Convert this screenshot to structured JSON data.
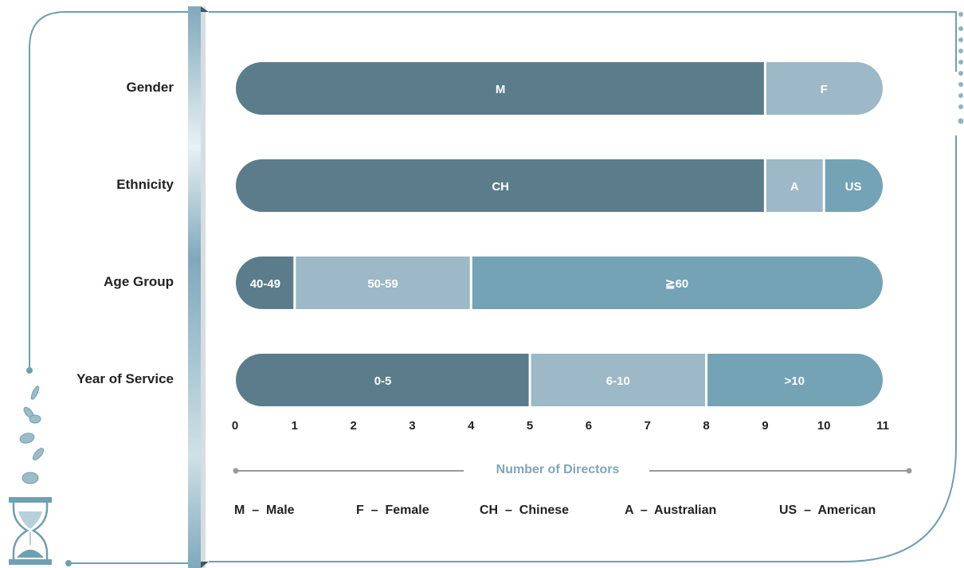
{
  "chart_data": {
    "type": "bar",
    "orientation": "horizontal",
    "stacked": true,
    "categories": [
      "Gender",
      "Ethnicity",
      "Age Group",
      "Year of Service"
    ],
    "rows": [
      {
        "category": "Gender",
        "segments": [
          {
            "label": "M",
            "value": 9,
            "color": "#5b7c8b"
          },
          {
            "label": "F",
            "value": 2,
            "color": "#9db8c7"
          }
        ]
      },
      {
        "category": "Ethnicity",
        "segments": [
          {
            "label": "CH",
            "value": 9,
            "color": "#5b7c8b"
          },
          {
            "label": "A",
            "value": 1,
            "color": "#9db8c7"
          },
          {
            "label": "US",
            "value": 1,
            "color": "#74a3b5"
          }
        ]
      },
      {
        "category": "Age Group",
        "segments": [
          {
            "label": "40-49",
            "value": 1,
            "color": "#5b7c8b"
          },
          {
            "label": "50-59",
            "value": 3,
            "color": "#9db8c7"
          },
          {
            "label": "≧60",
            "value": 7,
            "color": "#74a3b5"
          }
        ]
      },
      {
        "category": "Year of Service",
        "segments": [
          {
            "label": "0-5",
            "value": 5,
            "color": "#5b7c8b"
          },
          {
            "label": "6-10",
            "value": 3,
            "color": "#9db8c7"
          },
          {
            "label": ">10",
            "value": 3,
            "color": "#74a3b5"
          }
        ]
      }
    ],
    "xticks": [
      "0",
      "1",
      "2",
      "3",
      "4",
      "5",
      "6",
      "7",
      "8",
      "9",
      "10",
      "11"
    ],
    "xlim": [
      0,
      11
    ],
    "xlabel": "Number of Directors",
    "grid": false
  },
  "legend": [
    {
      "code": "M",
      "sep": "–",
      "name": "Male"
    },
    {
      "code": "F",
      "sep": "–",
      "name": "Female"
    },
    {
      "code": "CH",
      "sep": "–",
      "name": "Chinese"
    },
    {
      "code": "A",
      "sep": "–",
      "name": "Australian"
    },
    {
      "code": "US",
      "sep": "–",
      "name": "American"
    }
  ],
  "colors": {
    "frame": "#6f9fb2",
    "dark": "#5b7c8b",
    "light": "#9db8c7",
    "mid": "#74a3b5",
    "axis_title": "#7fa6b8"
  },
  "icons": [
    "hourglass-icon",
    "falling-coins-icon"
  ]
}
